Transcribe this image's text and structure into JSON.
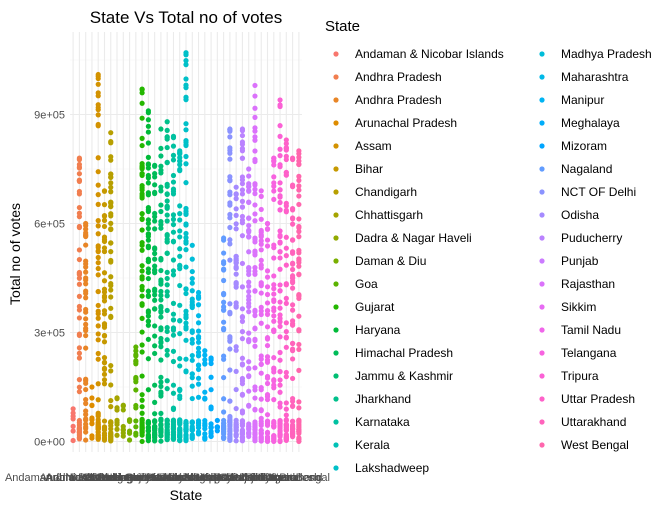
{
  "chart_data": {
    "type": "scatter",
    "title": "State Vs Total no of votes",
    "xlabel": "State",
    "ylabel": "Total no of votes",
    "ylim": [
      0,
      1080000
    ],
    "yticks": [
      0,
      300000,
      600000,
      900000
    ],
    "ytick_labels": [
      "0e+00",
      "3e+05",
      "6e+05",
      "9e+05"
    ],
    "grid": true,
    "legend_title": "State",
    "legend_position": "right",
    "categories": [
      "Andaman & Nicobar Islands",
      "Andhra Pradesh",
      "Andhra Pradesh",
      "Arunachal Pradesh",
      "Assam",
      "Bihar",
      "Chandigarh",
      "Chhattisgarh",
      "Dadra & Nagar Haveli",
      "Daman & Diu",
      "Goa",
      "Gujarat",
      "Haryana",
      "Himachal Pradesh",
      "Jammu & Kashmir",
      "Jharkhand",
      "Karnataka",
      "Kerala",
      "Lakshadweep",
      "Madhya Pradesh",
      "Maharashtra",
      "Manipur",
      "Meghalaya",
      "Mizoram",
      "Nagaland",
      "NCT OF Delhi",
      "Odisha",
      "Puducherry",
      "Punjab",
      "Rajasthan",
      "Sikkim",
      "Tamil Nadu",
      "Telangana",
      "Tripura",
      "Uttar Pradesh",
      "Uttarakhand",
      "West Bengal"
    ],
    "colors": [
      "#F8766D",
      "#F17E4F",
      "#E88526",
      "#DE8C00",
      "#D39200",
      "#C69900",
      "#B79F00",
      "#A5A400",
      "#91AA00",
      "#79AF00",
      "#5BB300",
      "#24B700",
      "#00BA38",
      "#00BC59",
      "#00BE72",
      "#00C08B",
      "#00C1A1",
      "#00C1B6",
      "#00C0C8",
      "#00BDD9",
      "#00B9E8",
      "#00B4F3",
      "#00ADFA",
      "#00A5FF",
      "#619CFF",
      "#8B93FF",
      "#A58AFF",
      "#BA82FF",
      "#CB7BFF",
      "#DB72FB",
      "#E76BF3",
      "#F066EA",
      "#F763E0",
      "#FB61D5",
      "#FE61C9",
      "#FF63BC",
      "#FF66AD"
    ],
    "series_summary": [
      {
        "state": "Andaman & Nicobar Islands",
        "max": 90000
      },
      {
        "state": "Andhra Pradesh",
        "max": 780000
      },
      {
        "state": "Andhra Pradesh",
        "max": 600000
      },
      {
        "state": "Arunachal Pradesh",
        "max": 150000
      },
      {
        "state": "Assam",
        "max": 1010000
      },
      {
        "state": "Bihar",
        "max": 690000
      },
      {
        "state": "Chandigarh",
        "max": 850000
      },
      {
        "state": "Chhattisgarh",
        "max": 120000
      },
      {
        "state": "Dadra & Nagar Haveli",
        "max": 100000
      },
      {
        "state": "Daman & Diu",
        "max": 60000
      },
      {
        "state": "Goa",
        "max": 260000
      },
      {
        "state": "Gujarat",
        "max": 970000
      },
      {
        "state": "Haryana",
        "max": 910000
      },
      {
        "state": "Himachal Pradesh",
        "max": 760000
      },
      {
        "state": "Jammu & Kashmir",
        "max": 860000
      },
      {
        "state": "Jharkhand",
        "max": 880000
      },
      {
        "state": "Karnataka",
        "max": 840000
      },
      {
        "state": "Kerala",
        "max": 800000
      },
      {
        "state": "Lakshadweep",
        "max": 1070000
      },
      {
        "state": "Madhya Pradesh",
        "max": 540000
      },
      {
        "state": "Maharashtra",
        "max": 410000
      },
      {
        "state": "Manipur",
        "max": 250000
      },
      {
        "state": "Meghalaya",
        "max": 230000
      },
      {
        "state": "Mizoram",
        "max": 40000
      },
      {
        "state": "Nagaland",
        "max": 560000
      },
      {
        "state": "NCT OF Delhi",
        "max": 860000
      },
      {
        "state": "Odisha",
        "max": 700000
      },
      {
        "state": "Puducherry",
        "max": 860000
      },
      {
        "state": "Punjab",
        "max": 750000
      },
      {
        "state": "Rajasthan",
        "max": 980000
      },
      {
        "state": "Sikkim",
        "max": 690000
      },
      {
        "state": "Tamil Nadu",
        "max": 600000
      },
      {
        "state": "Telangana",
        "max": 780000
      },
      {
        "state": "Tripura",
        "max": 940000
      },
      {
        "state": "Uttar Pradesh",
        "max": 830000
      },
      {
        "state": "Uttarakhand",
        "max": 780000
      },
      {
        "state": "West Bengal",
        "max": 800000
      }
    ]
  }
}
